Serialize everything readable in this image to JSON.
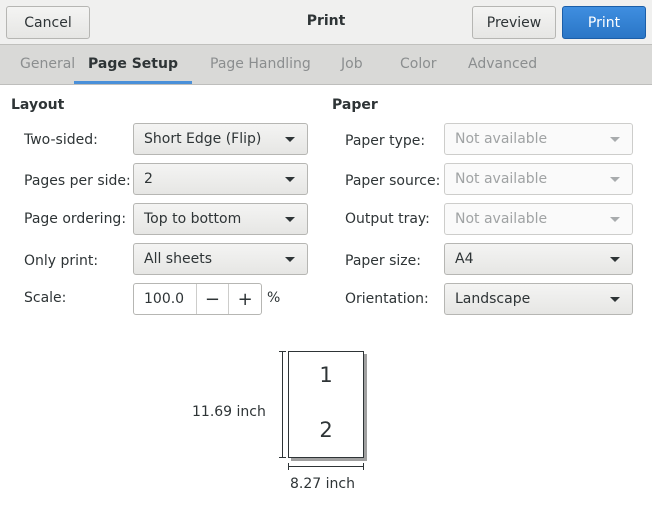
{
  "header": {
    "title": "Print",
    "cancel": "Cancel",
    "preview": "Preview",
    "print": "Print"
  },
  "tabs": [
    {
      "label": "General"
    },
    {
      "label": "Page Setup",
      "active": true
    },
    {
      "label": "Page Handling"
    },
    {
      "label": "Job"
    },
    {
      "label": "Color"
    },
    {
      "label": "Advanced"
    }
  ],
  "layout": {
    "title": "Layout",
    "two_sided": {
      "label": "Two-sided:",
      "value": "Short Edge (Flip)"
    },
    "pages_per_side": {
      "label": "Pages per side:",
      "value": "2"
    },
    "page_ordering": {
      "label": "Page ordering:",
      "value": "Top to bottom"
    },
    "only_print": {
      "label": "Only print:",
      "value": "All sheets"
    },
    "scale": {
      "label": "Scale:",
      "value": "100.0",
      "minus": "−",
      "plus": "+",
      "unit": "%"
    }
  },
  "paper": {
    "title": "Paper",
    "paper_type": {
      "label": "Paper type:",
      "value": "Not available"
    },
    "paper_source": {
      "label": "Paper source:",
      "value": "Not available"
    },
    "output_tray": {
      "label": "Output tray:",
      "value": "Not available"
    },
    "paper_size": {
      "label": "Paper size:",
      "value": "A4"
    },
    "orientation": {
      "label": "Orientation:",
      "value": "Landscape"
    }
  },
  "preview": {
    "height": "11.69 inch",
    "width": "8.27 inch",
    "page1": "1",
    "page2": "2"
  },
  "colors": {
    "accent": "#4a90d9",
    "print_button": "#2a76c6"
  }
}
